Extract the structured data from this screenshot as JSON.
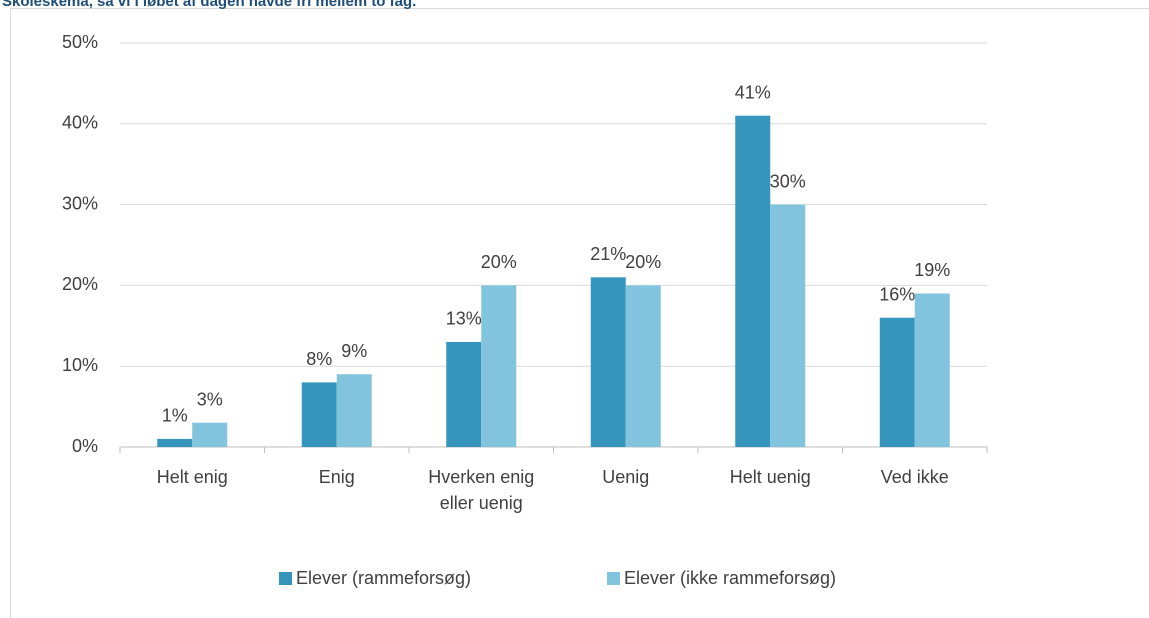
{
  "chart_data": {
    "type": "bar",
    "title": "Skoleskema, så vi i løbet af dagen havde fri mellem to fag.",
    "categories": [
      "Helt enig",
      "Enig",
      "Hverken enig eller uenig",
      "Uenig",
      "Helt uenig",
      "Ved ikke"
    ],
    "series": [
      {
        "name": "Elever (rammeforsøg)",
        "color": "#3595bd",
        "values": [
          1,
          8,
          13,
          21,
          41,
          16
        ],
        "value_labels": [
          "1%",
          "8%",
          "13%",
          "21%",
          "41%",
          "16%"
        ]
      },
      {
        "name": "Elever (ikke rammeforsøg)",
        "color": "#82c4de",
        "values": [
          3,
          9,
          20,
          20,
          30,
          19
        ],
        "value_labels": [
          "3%",
          "9%",
          "20%",
          "20%",
          "30%",
          "19%"
        ]
      }
    ],
    "ylim": [
      0,
      50
    ],
    "yticks": [
      {
        "value": 0,
        "label": "0%"
      },
      {
        "value": 10,
        "label": "10%"
      },
      {
        "value": 20,
        "label": "20%"
      },
      {
        "value": 30,
        "label": "30%"
      },
      {
        "value": 40,
        "label": "40%"
      },
      {
        "value": 50,
        "label": "50%"
      }
    ],
    "grid": true,
    "legend": "bottom"
  }
}
